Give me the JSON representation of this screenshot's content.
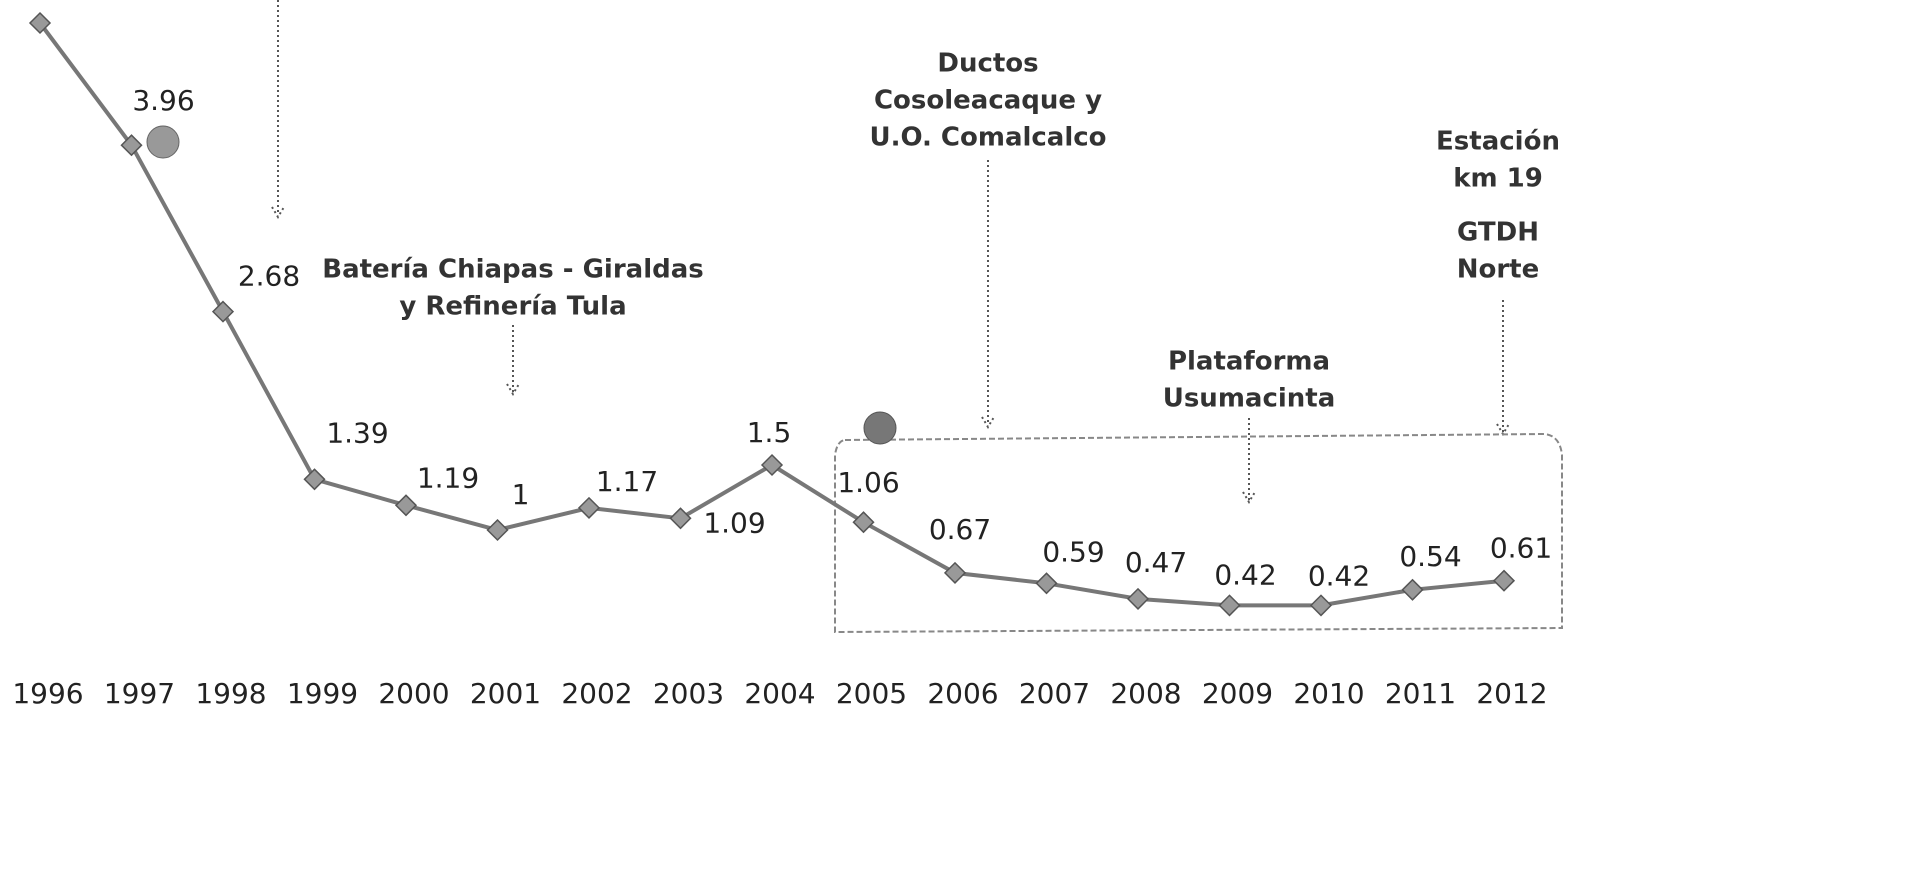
{
  "chart_data": {
    "type": "line",
    "categories": [
      "1996",
      "1997",
      "1998",
      "1999",
      "2000",
      "2001",
      "2002",
      "2003",
      "2004",
      "2005",
      "2006",
      "2007",
      "2008",
      "2009",
      "2010",
      "2011",
      "2012"
    ],
    "series": [
      {
        "color": "#777777",
        "values": [
          4.9,
          3.96,
          2.68,
          1.39,
          1.19,
          1,
          1.17,
          1.09,
          1.5,
          1.06,
          0.67,
          0.59,
          0.47,
          0.42,
          0.42,
          0.54,
          0.61
        ],
        "value_labels": [
          null,
          "3.96",
          "2.68",
          "1.39",
          "1.19",
          "1",
          "1.17",
          "1.09",
          "1.5",
          "1.06",
          "0.67",
          "0.59",
          "0.47",
          "0.42",
          "0.42",
          "0.54",
          "0.61"
        ]
      }
    ],
    "annotations": [
      {
        "lines": [
          "Batería Chiapas - Giraldas",
          "y Refinería Tula"
        ]
      },
      {
        "lines": [
          "Ductos",
          "Cosoleacaque y",
          "U.O. Comalcalco"
        ]
      },
      {
        "lines": [
          "Plataforma",
          "Usumacinta"
        ]
      },
      {
        "lines": [
          "Estación",
          "km 19"
        ]
      },
      {
        "lines": [
          "GTDH",
          "Norte"
        ]
      }
    ]
  }
}
